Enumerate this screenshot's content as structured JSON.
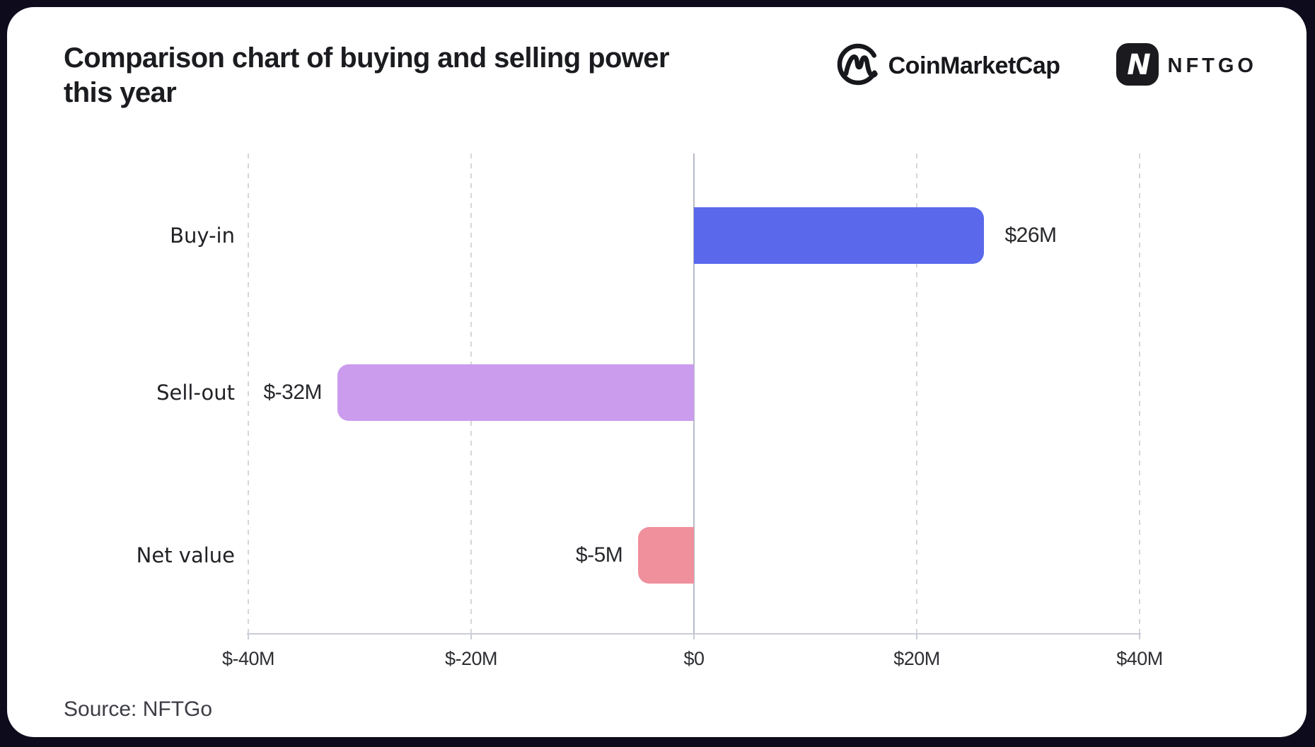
{
  "header": {
    "title": "Comparison chart of buying and selling power this year",
    "logos": {
      "coinmarketcap": "CoinMarketCap",
      "nftgo": "NFTGO"
    }
  },
  "footer": {
    "source": "Source: NFTGo"
  },
  "colors": {
    "background": "#0e0b1d",
    "card": "#ffffff",
    "buy_in_bar": "#5a69ec",
    "sell_out_bar": "#cb9cee",
    "net_value_bar": "#f0909d",
    "gridline": "#d5d6db",
    "zero_line": "#b7bac9",
    "text": "#1b1c1f"
  },
  "chart_data": {
    "type": "bar",
    "orientation": "horizontal",
    "title": "Comparison chart of buying and selling power this year",
    "categories": [
      "Buy-in",
      "Sell-out",
      "Net value"
    ],
    "values": [
      26,
      -32,
      -5
    ],
    "data_labels": [
      "$26M",
      "$-32M",
      "$-5M"
    ],
    "bar_colors": [
      "#5a69ec",
      "#cb9cee",
      "#f0909d"
    ],
    "xlim": [
      -40,
      40
    ],
    "x_ticks": [
      -40,
      -20,
      0,
      20,
      40
    ],
    "x_tick_labels": [
      "$-40M",
      "$-20M",
      "$0",
      "$20M",
      "$40M"
    ],
    "grid": "vertical-dashed",
    "legend": "none",
    "unit": "USD millions"
  }
}
